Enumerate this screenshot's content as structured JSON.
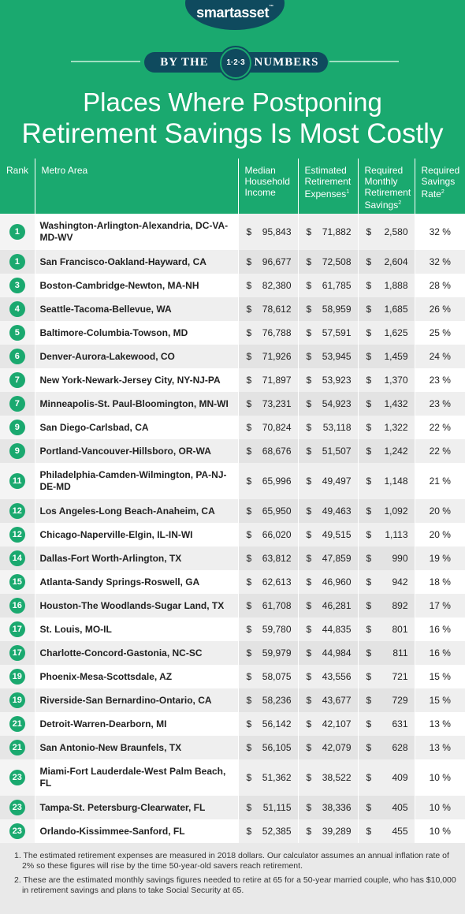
{
  "header": {
    "logo": "smartasset",
    "by_the": "BY THE",
    "badge": "1·2·3",
    "numbers": "NUMBERS",
    "title_line1": "Places Where Postponing",
    "title_line2": "Retirement Savings Is Most Costly",
    "brand_color": "#1aa96f",
    "dark_color": "#0f4a5e"
  },
  "columns": {
    "rank": "Rank",
    "metro": "Metro Area",
    "income": "Median Household Income",
    "expenses": "Estimated Retirement Expenses",
    "expenses_sup": "1",
    "savings": "Required Monthly Retirement Savings",
    "savings_sup": "2",
    "rate": "Required Savings Rate",
    "rate_sup": "2"
  },
  "rows": [
    {
      "rank": "1",
      "metro": "Washington-Arlington-Alexandria, DC-VA-MD-WV",
      "income": "95,843",
      "expenses": "71,882",
      "savings": "2,580",
      "rate": "32 %"
    },
    {
      "rank": "1",
      "metro": "San Francisco-Oakland-Hayward, CA",
      "income": "96,677",
      "expenses": "72,508",
      "savings": "2,604",
      "rate": "32 %"
    },
    {
      "rank": "3",
      "metro": "Boston-Cambridge-Newton, MA-NH",
      "income": "82,380",
      "expenses": "61,785",
      "savings": "1,888",
      "rate": "28 %"
    },
    {
      "rank": "4",
      "metro": "Seattle-Tacoma-Bellevue, WA",
      "income": "78,612",
      "expenses": "58,959",
      "savings": "1,685",
      "rate": "26 %"
    },
    {
      "rank": "5",
      "metro": "Baltimore-Columbia-Towson, MD",
      "income": "76,788",
      "expenses": "57,591",
      "savings": "1,625",
      "rate": "25 %"
    },
    {
      "rank": "6",
      "metro": "Denver-Aurora-Lakewood, CO",
      "income": "71,926",
      "expenses": "53,945",
      "savings": "1,459",
      "rate": "24 %"
    },
    {
      "rank": "7",
      "metro": "New York-Newark-Jersey City, NY-NJ-PA",
      "income": "71,897",
      "expenses": "53,923",
      "savings": "1,370",
      "rate": "23 %"
    },
    {
      "rank": "7",
      "metro": "Minneapolis-St. Paul-Bloomington, MN-WI",
      "income": "73,231",
      "expenses": "54,923",
      "savings": "1,432",
      "rate": "23 %"
    },
    {
      "rank": "9",
      "metro": "San Diego-Carlsbad, CA",
      "income": "70,824",
      "expenses": "53,118",
      "savings": "1,322",
      "rate": "22 %"
    },
    {
      "rank": "9",
      "metro": "Portland-Vancouver-Hillsboro, OR-WA",
      "income": "68,676",
      "expenses": "51,507",
      "savings": "1,242",
      "rate": "22 %"
    },
    {
      "rank": "11",
      "metro": "Philadelphia-Camden-Wilmington, PA-NJ-DE-MD",
      "income": "65,996",
      "expenses": "49,497",
      "savings": "1,148",
      "rate": "21 %"
    },
    {
      "rank": "12",
      "metro": "Los Angeles-Long Beach-Anaheim, CA",
      "income": "65,950",
      "expenses": "49,463",
      "savings": "1,092",
      "rate": "20 %"
    },
    {
      "rank": "12",
      "metro": "Chicago-Naperville-Elgin, IL-IN-WI",
      "income": "66,020",
      "expenses": "49,515",
      "savings": "1,113",
      "rate": "20 %"
    },
    {
      "rank": "14",
      "metro": "Dallas-Fort Worth-Arlington, TX",
      "income": "63,812",
      "expenses": "47,859",
      "savings": "990",
      "rate": "19 %"
    },
    {
      "rank": "15",
      "metro": "Atlanta-Sandy Springs-Roswell, GA",
      "income": "62,613",
      "expenses": "46,960",
      "savings": "942",
      "rate": "18 %"
    },
    {
      "rank": "16",
      "metro": "Houston-The Woodlands-Sugar Land, TX",
      "income": "61,708",
      "expenses": "46,281",
      "savings": "892",
      "rate": "17 %"
    },
    {
      "rank": "17",
      "metro": "St. Louis, MO-IL",
      "income": "59,780",
      "expenses": "44,835",
      "savings": "801",
      "rate": "16 %"
    },
    {
      "rank": "17",
      "metro": "Charlotte-Concord-Gastonia, NC-SC",
      "income": "59,979",
      "expenses": "44,984",
      "savings": "811",
      "rate": "16 %"
    },
    {
      "rank": "19",
      "metro": "Phoenix-Mesa-Scottsdale, AZ",
      "income": "58,075",
      "expenses": "43,556",
      "savings": "721",
      "rate": "15 %"
    },
    {
      "rank": "19",
      "metro": "Riverside-San Bernardino-Ontario, CA",
      "income": "58,236",
      "expenses": "43,677",
      "savings": "729",
      "rate": "15 %"
    },
    {
      "rank": "21",
      "metro": "Detroit-Warren-Dearborn, MI",
      "income": "56,142",
      "expenses": "42,107",
      "savings": "631",
      "rate": "13 %"
    },
    {
      "rank": "21",
      "metro": "San Antonio-New Braunfels, TX",
      "income": "56,105",
      "expenses": "42,079",
      "savings": "628",
      "rate": "13 %"
    },
    {
      "rank": "23",
      "metro": "Miami-Fort Lauderdale-West Palm Beach, FL",
      "income": "51,362",
      "expenses": "38,522",
      "savings": "409",
      "rate": "10 %"
    },
    {
      "rank": "23",
      "metro": "Tampa-St. Petersburg-Clearwater, FL",
      "income": "51,115",
      "expenses": "38,336",
      "savings": "405",
      "rate": "10 %"
    },
    {
      "rank": "23",
      "metro": "Orlando-Kissimmee-Sanford, FL",
      "income": "52,385",
      "expenses": "39,289",
      "savings": "455",
      "rate": "10 %"
    }
  ],
  "currency": "$",
  "notes": [
    "1. The estimated retirement expenses are measured in 2018 dollars. Our calculator assumes an annual inflation rate of 2% so these figures will rise by the time 50-year-old savers reach retirement.",
    "2. These are the estimated monthly savings figures needed to retire at 65 for a 50-year married couple, who has $10,000 in retirement savings and plans to take Social Security at 65."
  ]
}
